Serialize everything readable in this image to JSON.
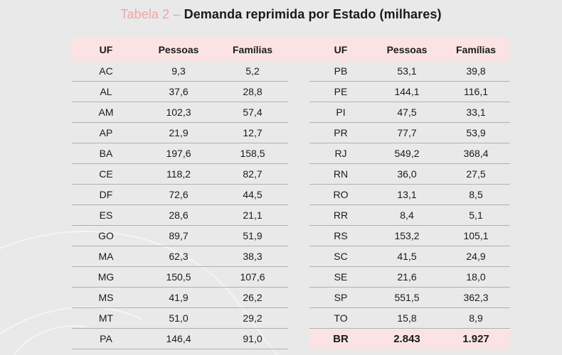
{
  "title": {
    "prefix": "Tabela 2",
    "dash": " – ",
    "main": "Demanda reprimida por Estado (milhares)"
  },
  "headers": [
    "UF",
    "Pessoas",
    "Famílias",
    "UF",
    "Pessoas",
    "Famílias"
  ],
  "left_rows": [
    [
      "AC",
      "9,3",
      "5,2"
    ],
    [
      "AL",
      "37,6",
      "28,8"
    ],
    [
      "AM",
      "102,3",
      "57,4"
    ],
    [
      "AP",
      "21,9",
      "12,7"
    ],
    [
      "BA",
      "197,6",
      "158,5"
    ],
    [
      "CE",
      "118,2",
      "82,7"
    ],
    [
      "DF",
      "72,6",
      "44,5"
    ],
    [
      "ES",
      "28,6",
      "21,1"
    ],
    [
      "GO",
      "89,7",
      "51,9"
    ],
    [
      "MA",
      "62,3",
      "38,3"
    ],
    [
      "MG",
      "150,5",
      "107,6"
    ],
    [
      "MS",
      "41,9",
      "26,2"
    ],
    [
      "MT",
      "51,0",
      "29,2"
    ],
    [
      "PA",
      "146,4",
      "91,0"
    ]
  ],
  "right_rows": [
    [
      "PB",
      "53,1",
      "39,8"
    ],
    [
      "PE",
      "144,1",
      "116,1"
    ],
    [
      "PI",
      "47,5",
      "33,1"
    ],
    [
      "PR",
      "77,7",
      "53,9"
    ],
    [
      "RJ",
      "549,2",
      "368,4"
    ],
    [
      "RN",
      "36,0",
      "27,5"
    ],
    [
      "RO",
      "13,1",
      "8,5"
    ],
    [
      "RR",
      "8,4",
      "5,1"
    ],
    [
      "RS",
      "153,2",
      "105,1"
    ],
    [
      "SC",
      "41,5",
      "24,9"
    ],
    [
      "SE",
      "21,6",
      "18,0"
    ],
    [
      "SP",
      "551,5",
      "362,3"
    ],
    [
      "TO",
      "15,8",
      "8,9"
    ],
    [
      "BR",
      "2.843",
      "1.927"
    ]
  ],
  "colors": {
    "accent": "#f0a4a8",
    "header_bg": "#fbe3e4",
    "background": "#e9e9e9"
  }
}
